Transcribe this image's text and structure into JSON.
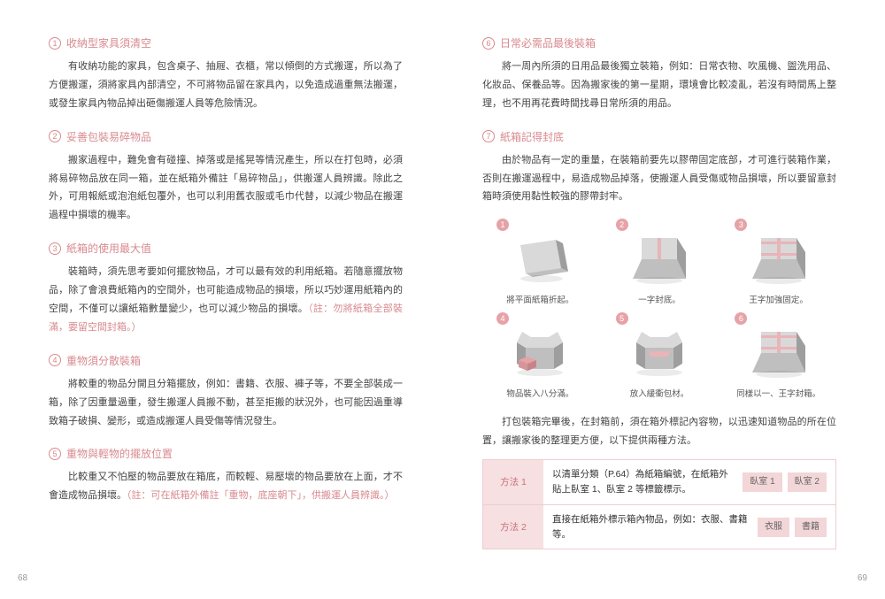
{
  "pageLeftNum": "68",
  "pageRightNum": "69",
  "colors": {
    "accent": "#d88a8f",
    "accentFill": "#e6a3a7",
    "tableBorder": "#eecdd0",
    "tableLabelBg": "#f6e0e1",
    "tagBg": "#f3d6d8",
    "boxLight": "#d9d9d9",
    "boxMid": "#bfbfbf",
    "boxDark": "#9e9e9e",
    "boxPink": "#e9b4b8"
  },
  "left": [
    {
      "num": "1",
      "title": "收納型家具須清空",
      "body": "有收納功能的家具，包含桌子、抽屜、衣櫃，常以傾倒的方式搬運，所以為了方便搬運，須將家具內部清空，不可將物品留在家具內，以免造成過重無法搬運，或發生家具內物品掉出砸傷搬運人員等危險情況。"
    },
    {
      "num": "2",
      "title": "妥善包裝易碎物品",
      "body": "搬家過程中，難免會有碰撞、掉落或是搖晃等情況產生，所以在打包時，必須將易碎物品放在同一箱，並在紙箱外備註「易碎物品」，供搬運人員辨識。除此之外，可用報紙或泡泡紙包覆外，也可以利用舊衣服或毛巾代替，以減少物品在搬運過程中損壞的機率。"
    },
    {
      "num": "3",
      "title": "紙箱的使用最大值",
      "body": "裝箱時，須先思考要如何擺放物品，才可以最有效的利用紙箱。若隨意擺放物品，除了會浪費紙箱內的空間外，也可能造成物品的損壞，所以巧妙運用紙箱內的空間，不僅可以讓紙箱數量變少，也可以減少物品的損壞。",
      "note": "（註：勿將紙箱全部裝滿，要留空間封箱。）"
    },
    {
      "num": "4",
      "title": "重物須分散裝箱",
      "body": "將較重的物品分開且分箱擺放，例如：書籍、衣服、褲子等，不要全部裝成一箱，除了因重量過重，發生搬運人員搬不動，甚至拒搬的狀況外，也可能因過重導致箱子破損、變形，或造成搬運人員受傷等情況發生。"
    },
    {
      "num": "5",
      "title": "重物與輕物的擺放位置",
      "body": "比較重又不怕壓的物品要放在箱底，而較輕、易壓壞的物品要放在上面，才不會造成物品損壞。",
      "note": "（註：可在紙箱外備註「重物，底座朝下」，供搬運人員辨識。）"
    }
  ],
  "right": [
    {
      "num": "6",
      "title": "日常必需品最後裝箱",
      "body": "將一周內所須的日用品最後獨立裝箱，例如：日常衣物、吹風機、盥洗用品、化妝品、保養品等。因為搬家後的第一星期，環境會比較凌亂，若沒有時間馬上整理，也不用再花費時間找尋日常所須的用品。"
    },
    {
      "num": "7",
      "title": "紙箱記得封底",
      "body": "由於物品有一定的重量，在裝箱前要先以膠帶固定底部，才可進行裝箱作業，否則在搬運過程中，易造成物品掉落，使搬運人員受傷或物品損壞，所以要留意封箱時須使用黏性較強的膠帶封牢。"
    }
  ],
  "boxes": [
    {
      "n": "1",
      "cap": "將平面紙箱折起。",
      "type": "flat"
    },
    {
      "n": "2",
      "cap": "一字封底。",
      "type": "closed-line"
    },
    {
      "n": "3",
      "cap": "王字加強固定。",
      "type": "closed-king"
    },
    {
      "n": "4",
      "cap": "物品裝入八分滿。",
      "type": "open-items"
    },
    {
      "n": "5",
      "cap": "放入緩衝包材。",
      "type": "open-pad"
    },
    {
      "n": "6",
      "cap": "同樣以一、王字封箱。",
      "type": "closed-king"
    }
  ],
  "closingText": "打包裝箱完畢後，在封箱前，須在箱外標記內容物，以迅速知道物品的所在位置，讓搬家後的整理更方便，以下提供兩種方法。",
  "methods": [
    {
      "label": "方法 1",
      "text": "以清單分類（P.64）為紙箱編號，在紙箱外貼上臥室 1、臥室 2 等標籤標示。",
      "tags": [
        "臥室 1",
        "臥室 2"
      ]
    },
    {
      "label": "方法 2",
      "text": "直接在紙箱外標示箱內物品，例如：衣服、書籍等。",
      "tags": [
        "衣服",
        "書籍"
      ]
    }
  ]
}
